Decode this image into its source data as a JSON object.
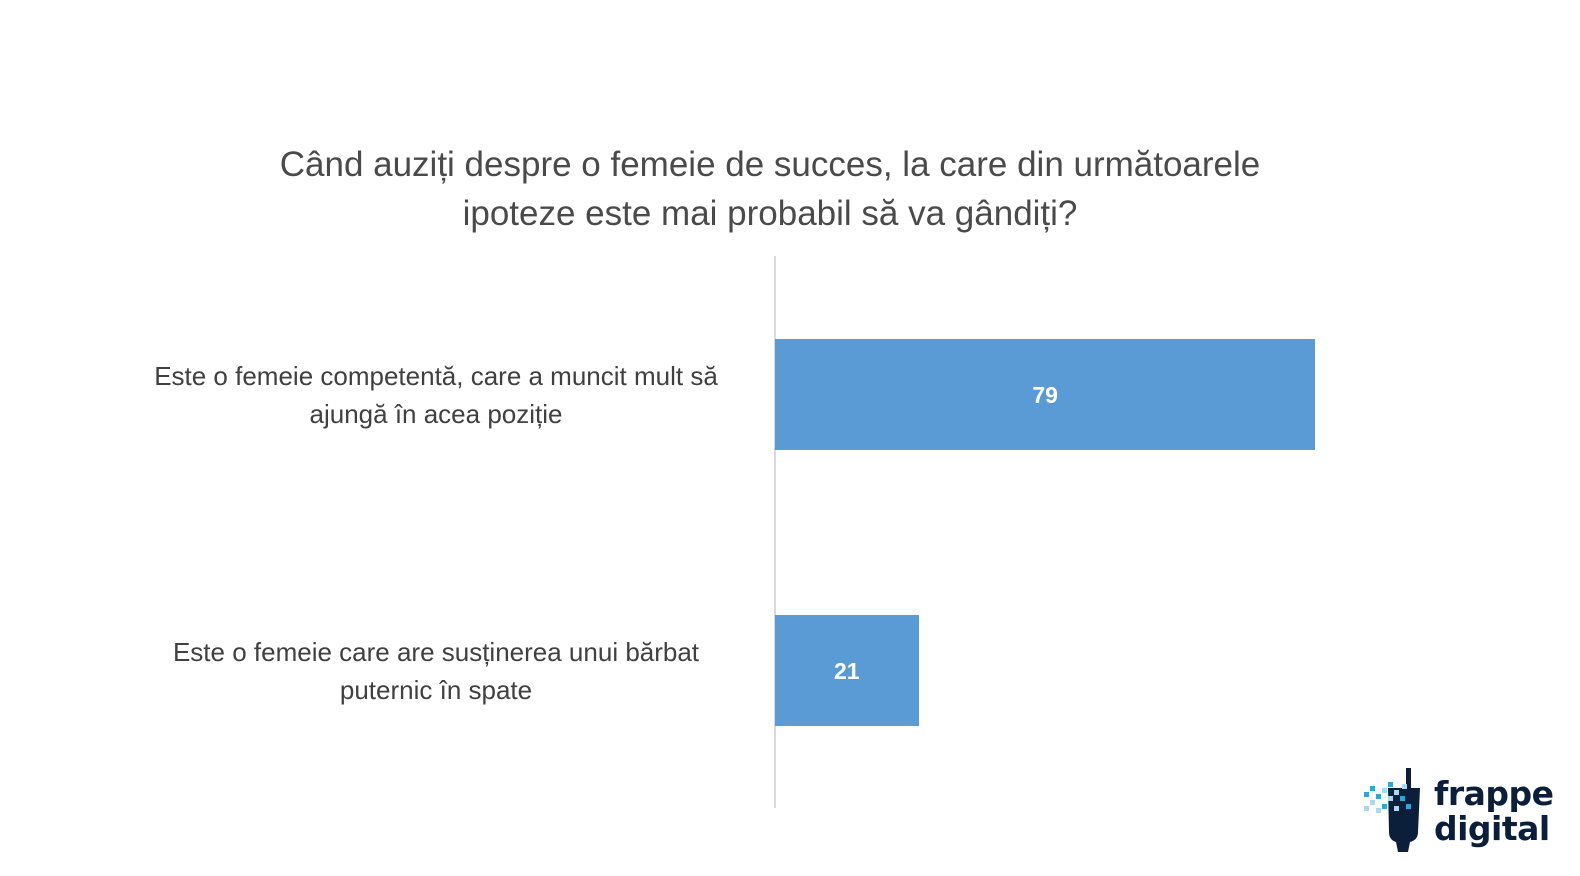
{
  "chart_data": {
    "type": "bar",
    "orientation": "horizontal",
    "title": "Când auziți despre o femeie de succes, la care din următoarele ipoteze este mai probabil să va gândiți?",
    "title_lines": [
      "Când auziți despre o femeie de succes, la care din următoarele",
      "ipoteze este mai probabil să va gândiți?"
    ],
    "categories": [
      "Este o femeie competentă, care a muncit mult să ajungă în acea poziție",
      "Este o femeie care are susținerea unui bărbat puternic în spate"
    ],
    "category_lines": [
      [
        "Este o femeie competentă, care a muncit mult să",
        "ajungă în acea poziție"
      ],
      [
        "Este o femeie care are susținerea unui bărbat",
        "puternic în spate"
      ]
    ],
    "values": [
      79,
      21
    ],
    "value_labels": [
      "79",
      "21"
    ],
    "xlim": [
      0,
      100
    ],
    "grid": false,
    "legend": "none",
    "bar_color": "#5b9bd5",
    "axis_color": "#d9d9d9"
  },
  "logo": {
    "text_lines": [
      "frappe",
      "digital"
    ],
    "colors": {
      "dark": "#0b1f3a",
      "accent": "#2aa7e0",
      "light": "#a9d8f2"
    }
  }
}
